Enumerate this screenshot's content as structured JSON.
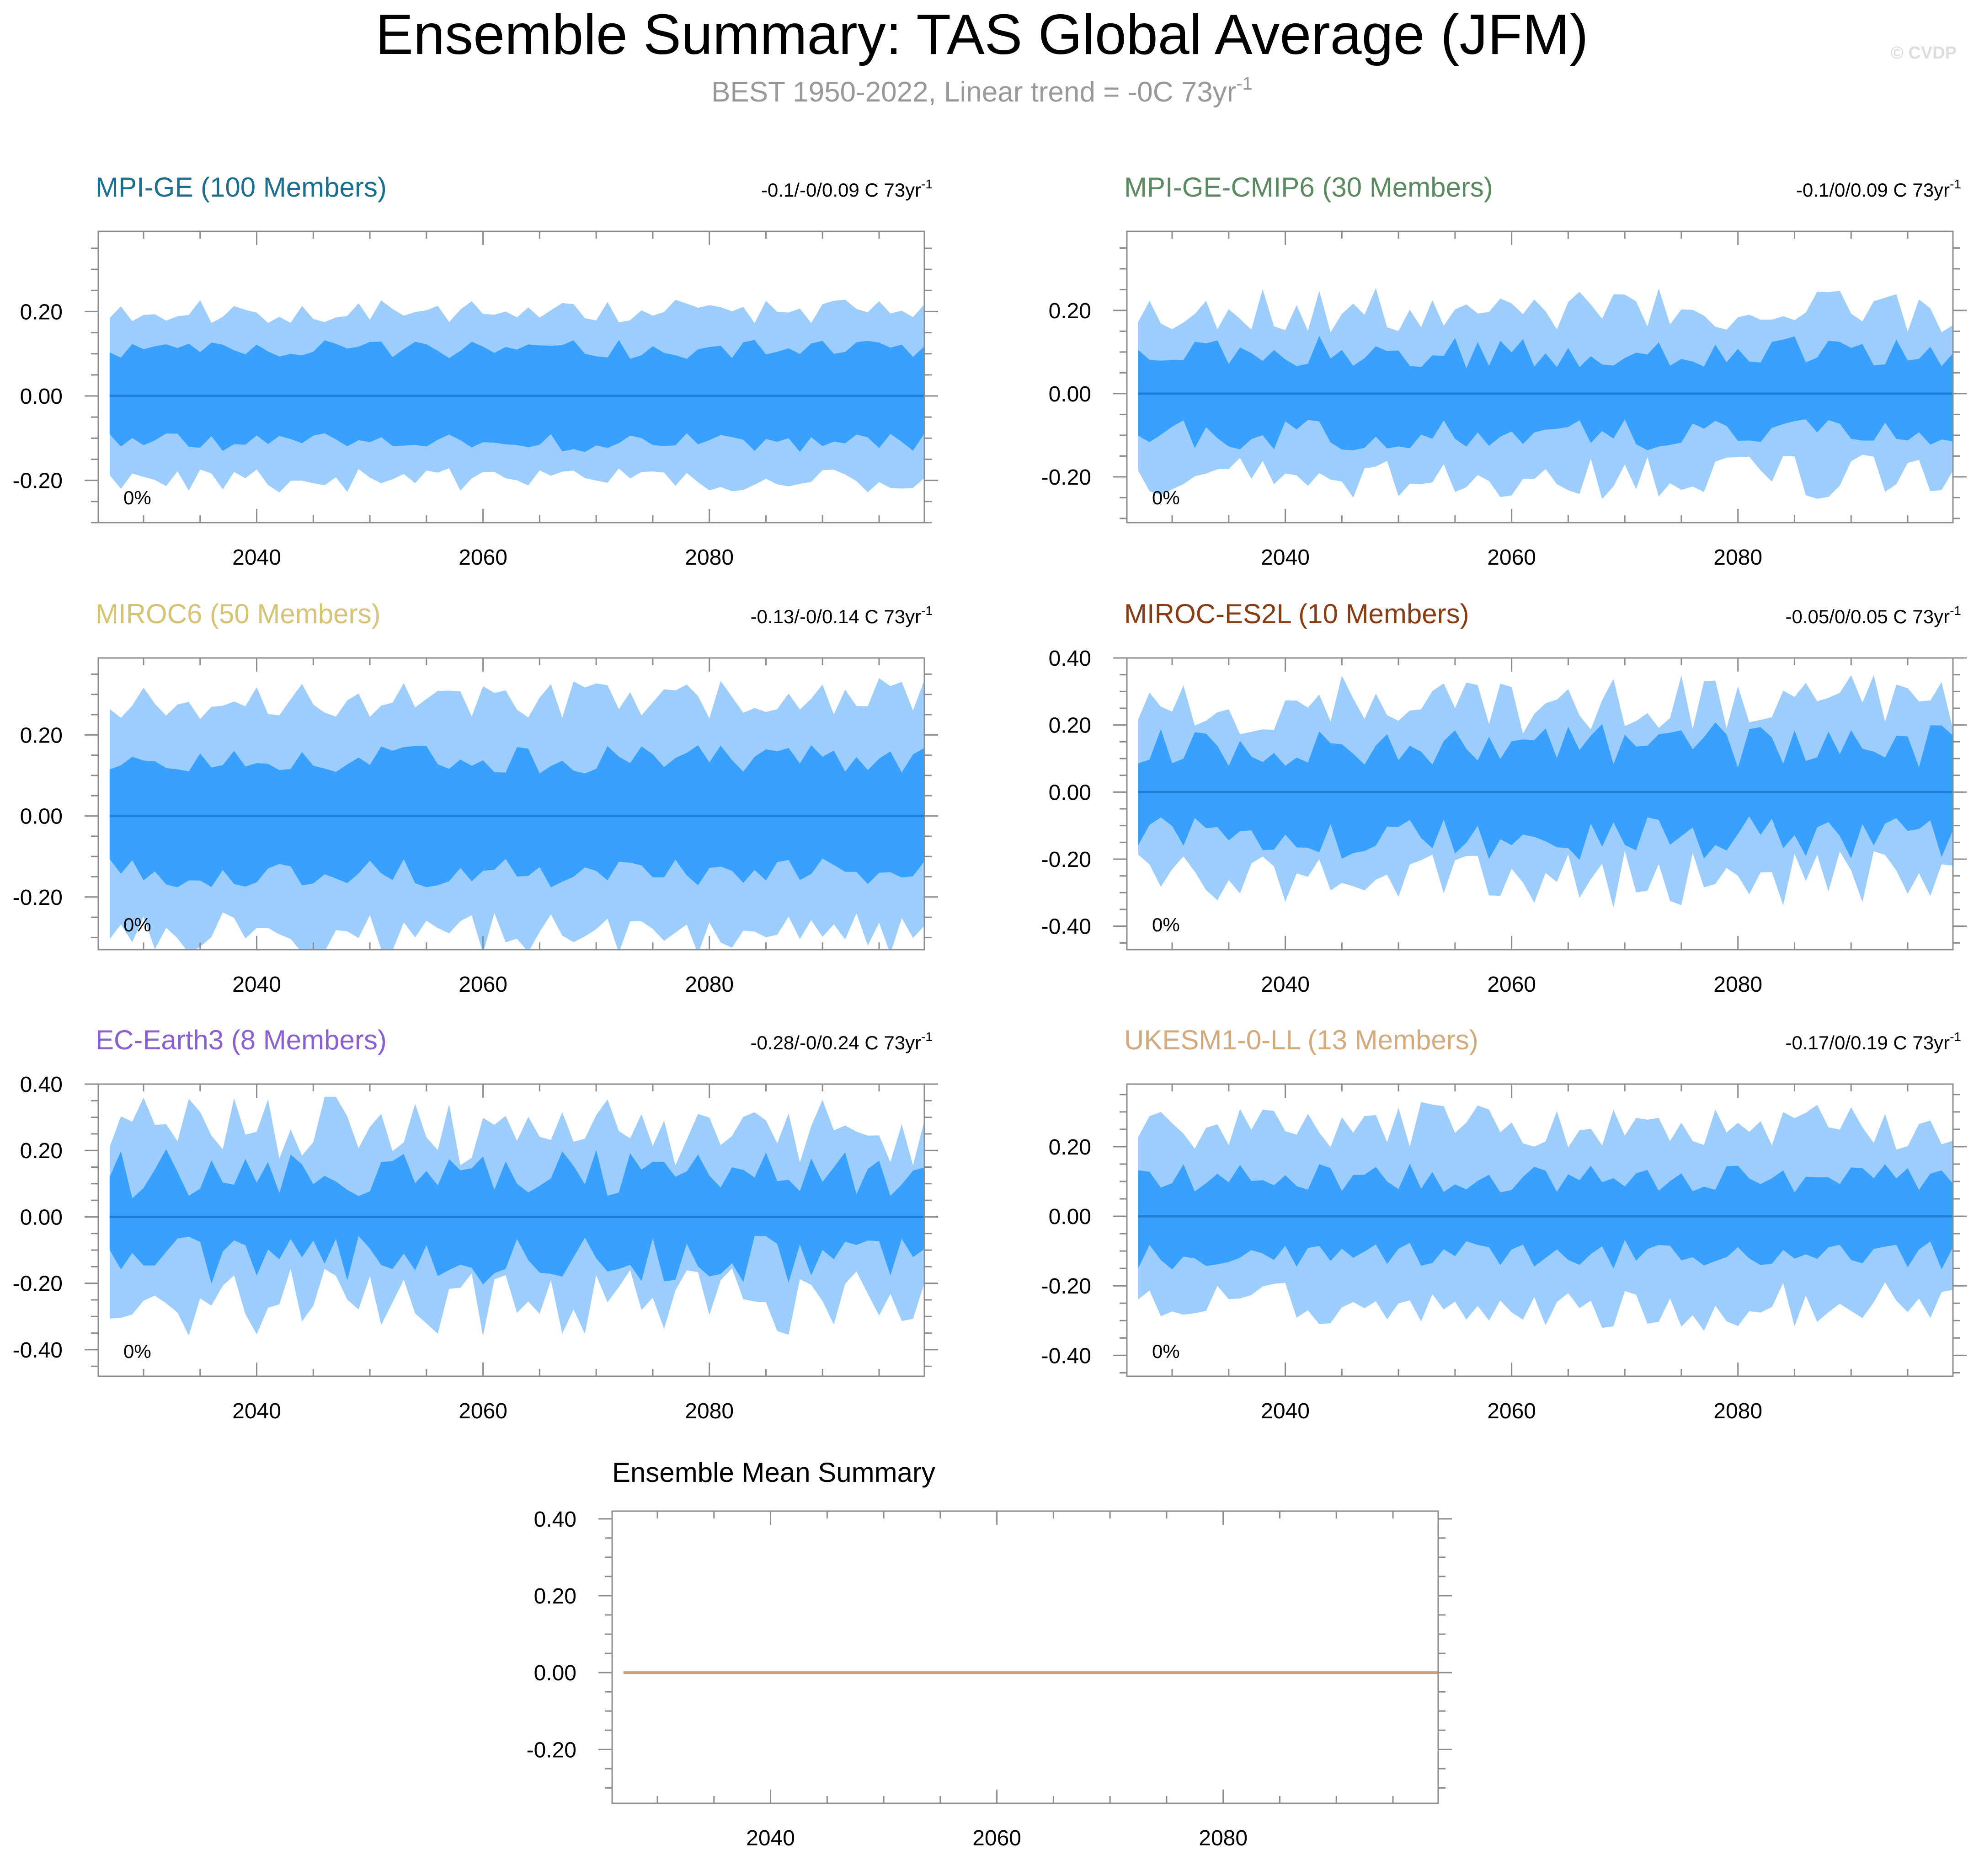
{
  "header": {
    "title": "Ensemble Summary: TAS Global Average (JFM)",
    "subtitle_main": "BEST 1950-2022, Linear trend = -0C 73yr",
    "subtitle_sup": "-1",
    "credit": "© CVDP"
  },
  "colors": {
    "outer_band": "#9dcdfc",
    "inner_band": "#38a0ff",
    "mean_line": "#1f7fd8",
    "summary_line": "#c9a280",
    "axis": "#8c8c8c"
  },
  "chart_data": [
    {
      "type": "area",
      "title": "MPI-GE (100 Members)",
      "title_color": "#1a6e8f",
      "trend_main": "-0.1/-0/0.09 C 73yr",
      "trend_sup": "-1",
      "pct_label": "0%",
      "ylim": [
        -0.3,
        0.39
      ],
      "yticks": [
        -0.2,
        0.0,
        0.2
      ],
      "ytick_labels": [
        "-0.20",
        "0.00",
        "0.20"
      ],
      "xlim": [
        2026,
        2099
      ],
      "xticks": [
        2040,
        2060,
        2080
      ],
      "xtick_labels": [
        "2040",
        "2060",
        "2080"
      ],
      "amp_outer": 0.2,
      "amp_inner": 0.11,
      "var": 0.16,
      "seed": 11
    },
    {
      "type": "area",
      "title": "MPI-GE-CMIP6 (30 Members)",
      "title_color": "#5a8a5f",
      "trend_main": "-0.1/0/0.09 C 73yr",
      "trend_sup": "-1",
      "pct_label": "0%",
      "ylim": [
        -0.31,
        0.39
      ],
      "yticks": [
        -0.2,
        0.0,
        0.2
      ],
      "ytick_labels": [
        "-0.20",
        "0.00",
        "0.20"
      ],
      "xlim": [
        2026,
        2099
      ],
      "xticks": [
        2040,
        2060,
        2080
      ],
      "xtick_labels": [
        "2040",
        "2060",
        "2080"
      ],
      "amp_outer": 0.2,
      "amp_inner": 0.1,
      "var": 0.3,
      "seed": 23
    },
    {
      "type": "area",
      "title": "MIROC6 (50 Members)",
      "title_color": "#d4c474",
      "trend_main": "-0.13/-0/0.14 C 73yr",
      "trend_sup": "-1",
      "pct_label": "0%",
      "ylim": [
        -0.33,
        0.39
      ],
      "yticks": [
        -0.2,
        0.0,
        0.2
      ],
      "ytick_labels": [
        "-0.20",
        "0.00",
        "0.20"
      ],
      "xlim": [
        2026,
        2099
      ],
      "xticks": [
        2040,
        2060,
        2080
      ],
      "xtick_labels": [
        "2040",
        "2060",
        "2080"
      ],
      "amp_outer": 0.29,
      "amp_inner": 0.14,
      "var": 0.2,
      "seed": 37
    },
    {
      "type": "area",
      "title": "MIROC-ES2L (10 Members)",
      "title_color": "#8a3c12",
      "trend_main": "-0.05/0/0.05 C 73yr",
      "trend_sup": "-1",
      "pct_label": "0%",
      "ylim": [
        -0.47,
        0.4
      ],
      "yticks": [
        -0.4,
        -0.2,
        0.0,
        0.2,
        0.4
      ],
      "ytick_labels": [
        "-0.40",
        "-0.20",
        "0.00",
        "0.20",
        "0.40"
      ],
      "xlim": [
        2026,
        2099
      ],
      "xticks": [
        2040,
        2060,
        2080
      ],
      "xtick_labels": [
        "2040",
        "2060",
        "2080"
      ],
      "amp_outer": 0.26,
      "amp_inner": 0.14,
      "var": 0.38,
      "seed": 53
    },
    {
      "type": "area",
      "title": "EC-Earth3 (8 Members)",
      "title_color": "#8a5fd0",
      "trend_main": "-0.28/-0/0.24 C 73yr",
      "trend_sup": "-1",
      "pct_label": "0%",
      "ylim": [
        -0.48,
        0.4
      ],
      "yticks": [
        -0.4,
        -0.2,
        0.0,
        0.2,
        0.4
      ],
      "ytick_labels": [
        "-0.40",
        "-0.20",
        "0.00",
        "0.20",
        "0.40"
      ],
      "xlim": [
        2026,
        2099
      ],
      "xticks": [
        2040,
        2060,
        2080
      ],
      "xtick_labels": [
        "2040",
        "2060",
        "2080"
      ],
      "amp_outer": 0.26,
      "amp_inner": 0.13,
      "var": 0.45,
      "seed": 71
    },
    {
      "type": "area",
      "title": "UKESM1-0-LL (13 Members)",
      "title_color": "#d4aa7c",
      "trend_main": "-0.17/0/0.19 C 73yr",
      "trend_sup": "-1",
      "pct_label": "0%",
      "ylim": [
        -0.46,
        0.38
      ],
      "yticks": [
        -0.4,
        -0.2,
        0.0,
        0.2
      ],
      "ytick_labels": [
        "-0.40",
        "-0.20",
        "0.00",
        "0.20"
      ],
      "xlim": [
        2026,
        2099
      ],
      "xticks": [
        2040,
        2060,
        2080
      ],
      "xtick_labels": [
        "2040",
        "2060",
        "2080"
      ],
      "amp_outer": 0.26,
      "amp_inner": 0.11,
      "var": 0.3,
      "seed": 89
    },
    {
      "type": "line",
      "title": "Ensemble Mean Summary",
      "ylim": [
        -0.34,
        0.42
      ],
      "yticks": [
        -0.2,
        0.0,
        0.2,
        0.4
      ],
      "ytick_labels": [
        "-0.20",
        "0.00",
        "0.20",
        "0.40"
      ],
      "xlim": [
        2026,
        2099
      ],
      "xticks": [
        2040,
        2060,
        2080
      ],
      "xtick_labels": [
        "2040",
        "2060",
        "2080"
      ],
      "series": [
        {
          "name": "Ensemble mean",
          "x": [
            2026,
            2099
          ],
          "values": [
            0.0,
            0.0
          ]
        }
      ]
    }
  ]
}
